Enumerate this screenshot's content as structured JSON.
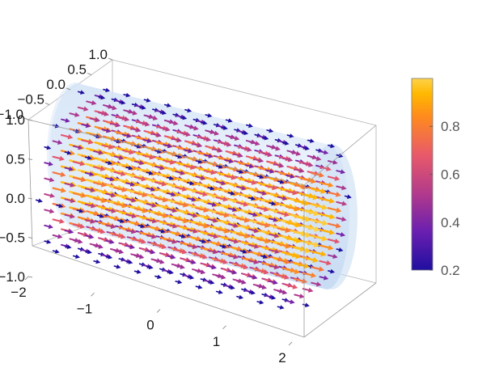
{
  "chart_data": {
    "type": "vector-field-3d",
    "title": "",
    "xlabel": "",
    "ylabel": "",
    "zlabel": "",
    "x_range": [
      -2,
      2
    ],
    "y_range": [
      -1,
      1
    ],
    "z_range": [
      -1,
      1
    ],
    "x_ticks": [
      "−2",
      "−1",
      "0",
      "1",
      "2"
    ],
    "y_ticks": [
      "−1.0",
      "−0.5",
      "0.0",
      "0.5",
      "1.0"
    ],
    "z_ticks": [
      "−1.0",
      "−0.5",
      "0.0",
      "0.5",
      "1.0"
    ],
    "region": "cylinder of radius 1 along x from −2 to 2",
    "field_direction": "+x",
    "magnitude_pattern": "largest on the cylinder axis (~1.0), smallest near the wall (~0.2)",
    "colorbar": {
      "range": [
        0.2,
        1.0
      ],
      "ticks": [
        "0.2",
        "0.4",
        "0.6",
        "0.8"
      ],
      "tick_values": [
        0.2,
        0.4,
        0.6,
        0.8
      ],
      "colors": [
        "#1f0fa0",
        "#6a1fb0",
        "#b23a8c",
        "#e8596a",
        "#ff8a1e",
        "#ffb800",
        "#ffd24a"
      ]
    }
  }
}
